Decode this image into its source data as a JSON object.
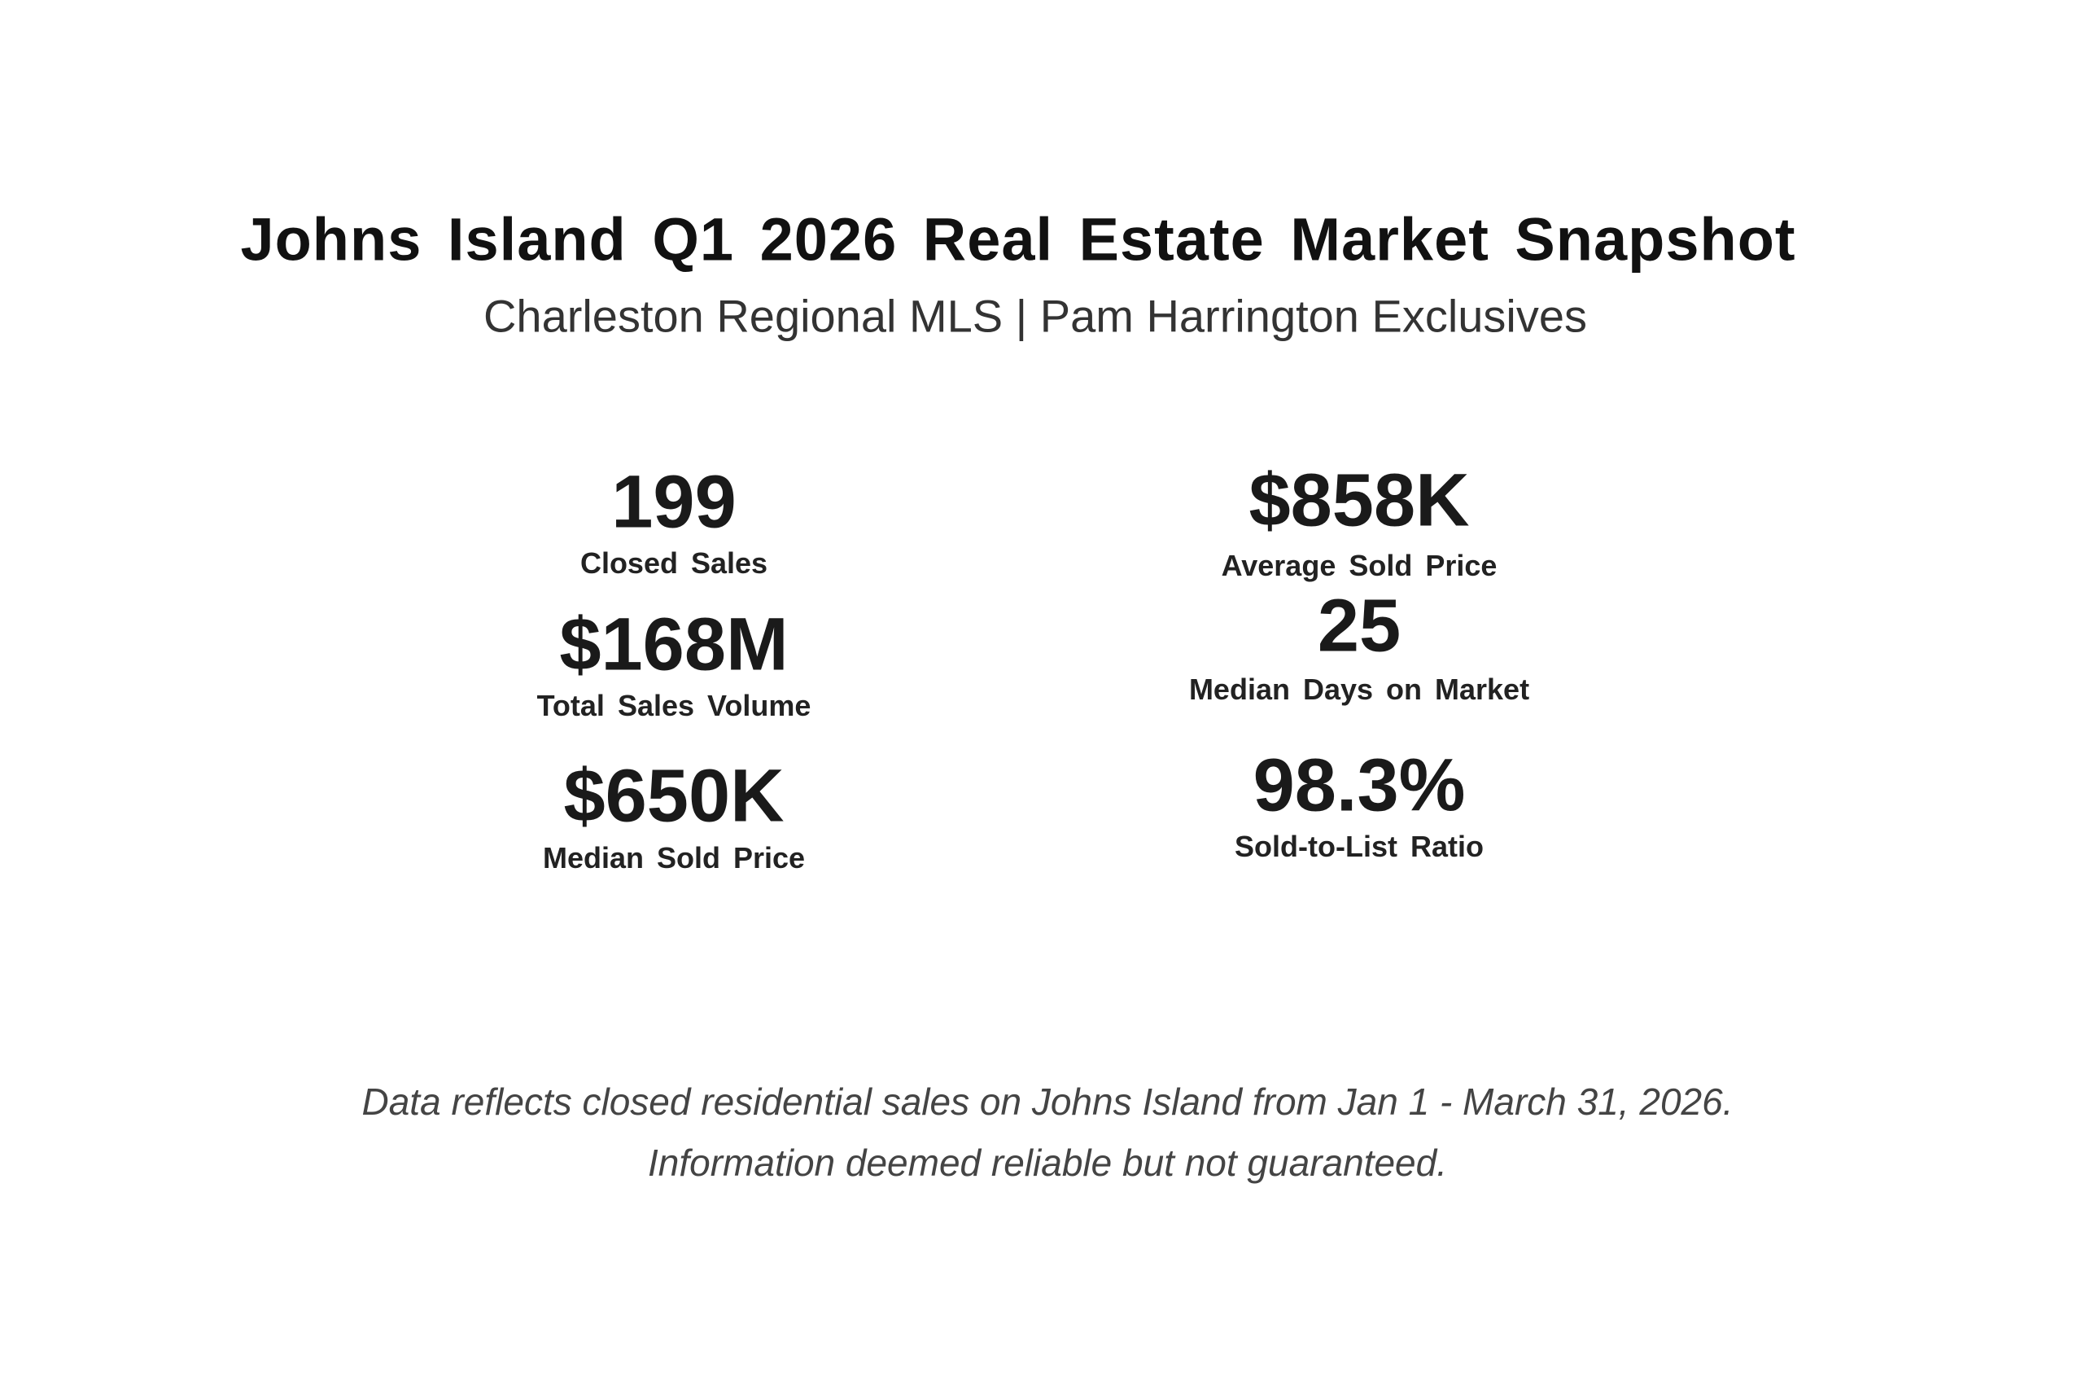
{
  "header": {
    "title": "Johns Island Q1 2026 Real Estate Market Snapshot",
    "subtitle": "Charleston Regional MLS | Pam Harrington Exclusives"
  },
  "stats": [
    {
      "value": "199",
      "label": "Closed Sales"
    },
    {
      "value": "$168M",
      "label": "Total Sales Volume"
    },
    {
      "value": "$650K",
      "label": "Median Sold Price"
    },
    {
      "value": "$858K",
      "label": "Average Sold Price"
    },
    {
      "value": "25",
      "label": "Median Days on Market"
    },
    {
      "value": "98.3%",
      "label": "Sold-to-List Ratio"
    }
  ],
  "footer": [
    "Data reflects closed residential sales on Johns Island from Jan 1 - March 31, 2026.",
    "Information deemed reliable but not guaranteed."
  ]
}
